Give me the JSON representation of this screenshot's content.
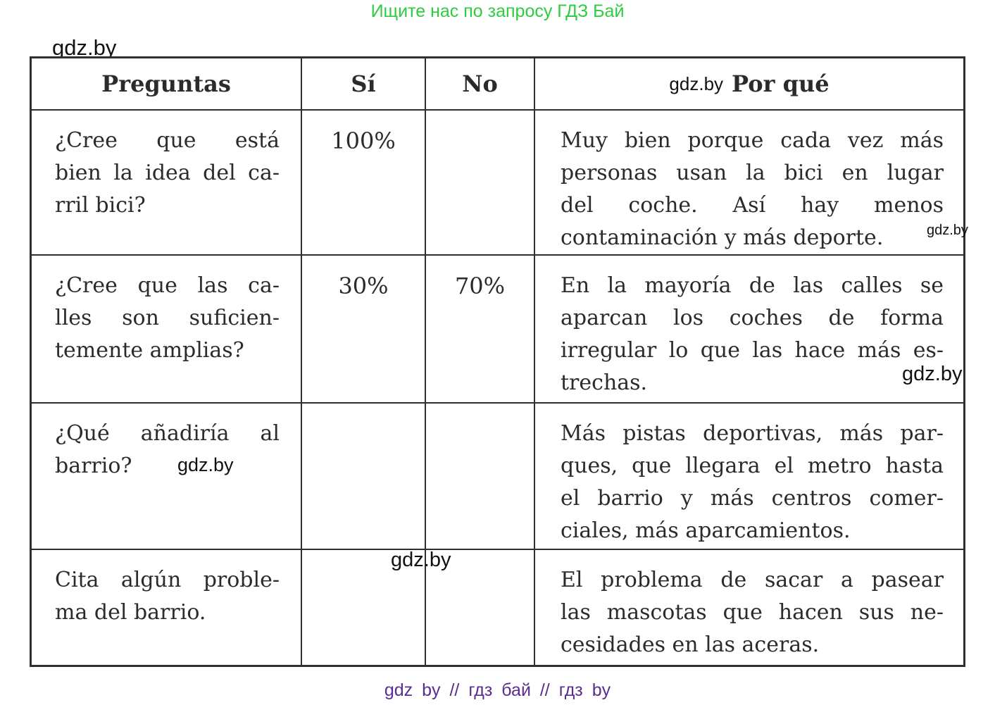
{
  "banner": {
    "text": "Ищите нас по запросу ГДЗ Бай",
    "color": "#2ECC40"
  },
  "footer": {
    "text": "gdz by // гдз бай // гдз by",
    "color": "#5C2D91"
  },
  "colors": {
    "border": "#2f2f2f",
    "text": "#2b2b2b",
    "watermark": "#111111"
  },
  "table": {
    "headers": {
      "preguntas": "Preguntas",
      "si": "Sí",
      "no": "No",
      "porque": "Por qué"
    },
    "rows": [
      {
        "pregunta_lines": [
          "¿Cree que está",
          "bien la idea del ca-",
          "rril bici?"
        ],
        "si": "100%",
        "no": "",
        "porque_lines": [
          "Muy bien porque cada vez más",
          "personas usan la bici en lugar",
          "del coche. Así hay menos",
          "contaminación y más deporte."
        ]
      },
      {
        "pregunta_lines": [
          "¿Cree que las ca-",
          "lles son suficien-",
          "temente amplias?"
        ],
        "si": "30%",
        "no": "70%",
        "porque_lines": [
          "En la mayoría de las calles se",
          "aparcan los coches de forma",
          "irregular lo que las hace más es-",
          "trechas."
        ]
      },
      {
        "pregunta_lines": [
          "¿Qué añadiría al",
          "barrio?"
        ],
        "si": "",
        "no": "",
        "porque_lines": [
          "Más pistas deportivas, más par-",
          "ques, que llegara el metro hasta",
          "el barrio y más centros comer-",
          "ciales, más aparcamientos."
        ]
      },
      {
        "pregunta_lines": [
          "Cita algún proble-",
          "ma del barrio."
        ],
        "si": "",
        "no": "",
        "porque_lines": [
          "El problema de sacar a pasear",
          "las mascotas que hacen sus ne-",
          "cesidades en las aceras."
        ]
      }
    ]
  },
  "watermarks": {
    "top": "gdz.by",
    "header": "gdz.by",
    "row1": "gdz.by",
    "row2": "gdz.by",
    "row3": "gdz.by",
    "row4": "gdz.by"
  }
}
